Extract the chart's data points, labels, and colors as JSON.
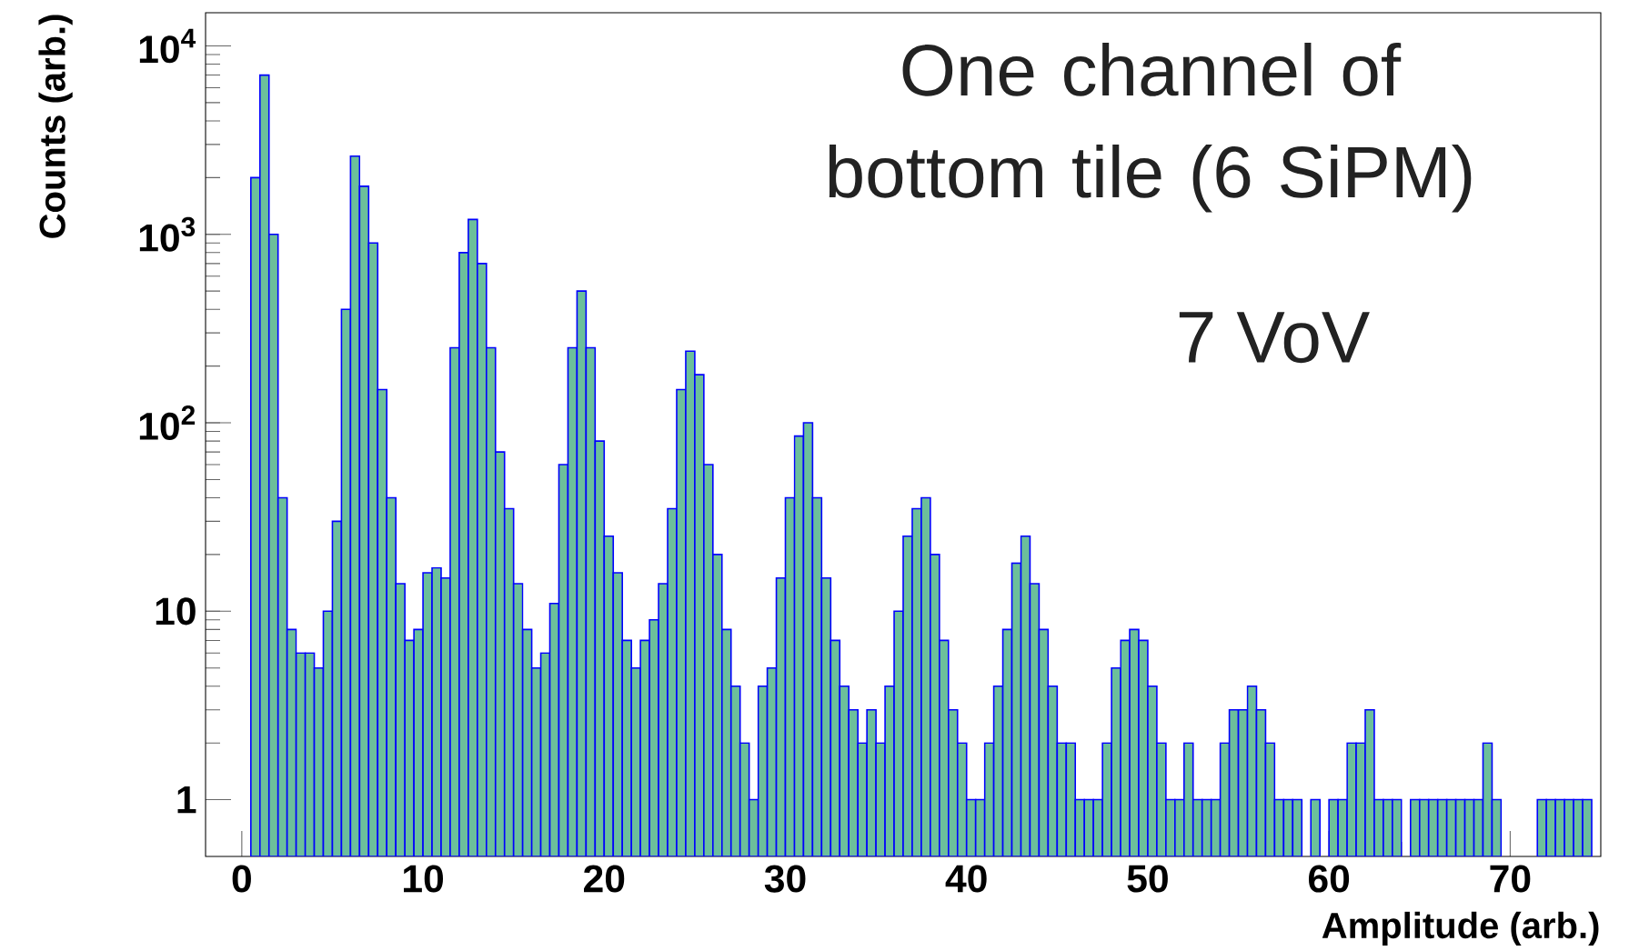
{
  "chart_data": {
    "type": "histogram",
    "xlabel": "Amplitude (arb.)",
    "ylabel": "Counts (arb.)",
    "annotations": [
      "One channel of bottom tile (6 SiPM)",
      "7 VoV"
    ],
    "color": "#6cbf9b",
    "log": "y",
    "xlim": [
      -2,
      75
    ],
    "ylim": [
      0.5,
      15000
    ],
    "xticks": [
      0,
      10,
      20,
      30,
      40,
      50,
      60,
      70
    ],
    "yticks": [
      1,
      10,
      {
        "value": 100,
        "label": "10$^{2}$"
      },
      {
        "value": 1000,
        "label": "10$^{3}$"
      },
      {
        "value": 10000,
        "label": "10$^{4}$"
      }
    ],
    "grid": false,
    "bins": [
      0.5,
      1,
      1.5,
      2,
      2.5,
      3,
      3.5,
      4,
      4.5,
      5,
      5.5,
      6,
      6.5,
      7,
      7.5,
      8,
      8.5,
      9,
      9.5,
      10,
      10.5,
      11,
      11.5,
      12,
      12.5,
      13,
      13.5,
      14,
      14.5,
      15,
      15.5,
      16,
      16.5,
      17,
      17.5,
      18,
      18.5,
      19,
      19.5,
      20,
      20.5,
      21,
      21.5,
      22,
      22.5,
      23,
      23.5,
      24,
      24.5,
      25,
      25.5,
      26,
      26.5,
      27,
      27.5,
      28,
      28.5,
      29,
      29.5,
      30,
      30.5,
      31,
      31.5,
      32,
      32.5,
      33,
      33.5,
      34,
      34.5,
      35,
      35.5,
      36,
      36.5,
      37,
      37.5,
      38,
      38.5,
      39,
      39.5,
      40,
      40.5,
      41,
      41.5,
      42,
      42.5,
      43,
      43.5,
      44,
      44.5,
      45,
      45.5,
      46,
      46.5,
      47,
      47.5,
      48,
      48.5,
      49,
      49.5,
      50,
      50.5,
      51,
      51.5,
      52,
      52.5,
      53,
      53.5,
      54,
      54.5,
      55,
      55.5,
      56,
      56.5,
      57,
      57.5,
      58,
      58.5,
      59,
      59.5,
      60,
      60.5,
      61,
      61.5,
      62,
      62.5,
      63,
      63.5,
      64,
      64.5,
      65,
      65.5,
      66,
      66.5,
      67,
      67.5,
      68,
      68.5,
      69,
      69.5,
      70,
      70.5,
      71,
      71.5,
      72,
      72.5,
      73,
      73.5,
      74,
      74.5,
      75
    ],
    "values": [
      2000,
      7000,
      1000,
      40,
      8,
      6,
      6,
      5,
      10,
      30,
      400,
      2600,
      1800,
      900,
      150,
      40,
      14,
      7,
      8,
      16,
      17,
      15,
      250,
      800,
      1200,
      700,
      250,
      70,
      35,
      14,
      8,
      5,
      6,
      11,
      60,
      250,
      500,
      250,
      80,
      25,
      16,
      7,
      5,
      7,
      9,
      14,
      35,
      150,
      240,
      180,
      60,
      20,
      8,
      4,
      2,
      1,
      4,
      5,
      15,
      40,
      85,
      100,
      40,
      15,
      7,
      4,
      3,
      2,
      3,
      2,
      4,
      10,
      25,
      35,
      40,
      20,
      7,
      3,
      2,
      1,
      1,
      2,
      4,
      8,
      18,
      25,
      14,
      8,
      4,
      2,
      2,
      1,
      1,
      1,
      2,
      5,
      7,
      8,
      7,
      4,
      2,
      1,
      1,
      2,
      1,
      1,
      1,
      2,
      3,
      3,
      4,
      3,
      2,
      1,
      1,
      1,
      null,
      1,
      null,
      1,
      1,
      2,
      2,
      3,
      1,
      1,
      1,
      null,
      1,
      1,
      1,
      1,
      1,
      1,
      1,
      1,
      2,
      1,
      null,
      null,
      null,
      null,
      1,
      1,
      1,
      1,
      1,
      1,
      null
    ]
  }
}
